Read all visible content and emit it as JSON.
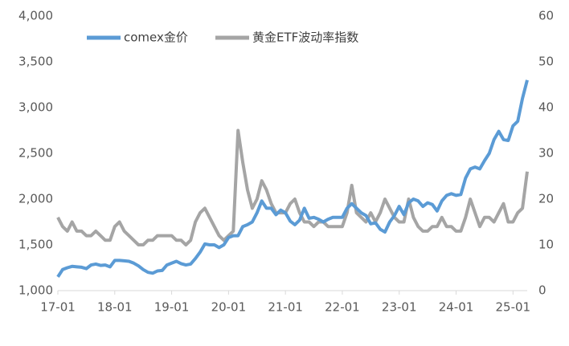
{
  "chart_data": {
    "type": "line",
    "x": [
      "17-01",
      "17-02",
      "17-03",
      "17-04",
      "17-05",
      "17-06",
      "17-07",
      "17-08",
      "17-09",
      "17-10",
      "17-11",
      "17-12",
      "18-01",
      "18-02",
      "18-03",
      "18-04",
      "18-05",
      "18-06",
      "18-07",
      "18-08",
      "18-09",
      "18-10",
      "18-11",
      "18-12",
      "19-01",
      "19-02",
      "19-03",
      "19-04",
      "19-05",
      "19-06",
      "19-07",
      "19-08",
      "19-09",
      "19-10",
      "19-11",
      "19-12",
      "20-01",
      "20-02",
      "20-03",
      "20-04",
      "20-05",
      "20-06",
      "20-07",
      "20-08",
      "20-09",
      "20-10",
      "20-11",
      "20-12",
      "21-01",
      "21-02",
      "21-03",
      "21-04",
      "21-05",
      "21-06",
      "21-07",
      "21-08",
      "21-09",
      "21-10",
      "21-11",
      "21-12",
      "22-01",
      "22-02",
      "22-03",
      "22-04",
      "22-05",
      "22-06",
      "22-07",
      "22-08",
      "22-09",
      "22-10",
      "22-11",
      "22-12",
      "23-01",
      "23-02",
      "23-03",
      "23-04",
      "23-05",
      "23-06",
      "23-07",
      "23-08",
      "23-09",
      "23-10",
      "23-11",
      "23-12",
      "24-01",
      "24-02",
      "24-03",
      "24-04",
      "24-05",
      "24-06",
      "24-07",
      "24-08",
      "24-09",
      "24-10",
      "24-11",
      "24-12",
      "25-01",
      "25-02",
      "25-03",
      "25-04"
    ],
    "xticks": [
      "17-01",
      "18-01",
      "19-01",
      "20-01",
      "21-01",
      "22-01",
      "23-01",
      "24-01",
      "25-01"
    ],
    "series": [
      {
        "name": "comex金价",
        "color": "#5b9bd5",
        "axis": "y",
        "values": [
          1150,
          1230,
          1250,
          1265,
          1260,
          1255,
          1240,
          1280,
          1290,
          1275,
          1280,
          1260,
          1330,
          1330,
          1325,
          1320,
          1300,
          1270,
          1230,
          1200,
          1190,
          1215,
          1220,
          1280,
          1300,
          1320,
          1295,
          1280,
          1290,
          1350,
          1420,
          1510,
          1500,
          1500,
          1470,
          1500,
          1580,
          1600,
          1600,
          1700,
          1720,
          1750,
          1850,
          1980,
          1900,
          1900,
          1830,
          1880,
          1850,
          1760,
          1720,
          1770,
          1900,
          1790,
          1800,
          1780,
          1750,
          1780,
          1800,
          1800,
          1800,
          1900,
          1950,
          1900,
          1850,
          1820,
          1730,
          1740,
          1670,
          1640,
          1750,
          1820,
          1920,
          1830,
          1960,
          2000,
          1980,
          1920,
          1960,
          1940,
          1870,
          1980,
          2040,
          2060,
          2040,
          2050,
          2230,
          2330,
          2350,
          2330,
          2420,
          2500,
          2650,
          2740,
          2650,
          2640,
          2800,
          2850,
          3100,
          3300
        ]
      },
      {
        "name": "黄金ETF波动率指数",
        "color": "#a5a5a5",
        "axis": "y2",
        "values": [
          16,
          14,
          13,
          15,
          13,
          13,
          12,
          12,
          13,
          12,
          11,
          11,
          14,
          15,
          13,
          12,
          11,
          10,
          10,
          11,
          11,
          12,
          12,
          12,
          12,
          11,
          11,
          10,
          11,
          15,
          17,
          18,
          16,
          14,
          12,
          11,
          12,
          13,
          35,
          28,
          22,
          18,
          20,
          24,
          22,
          19,
          17,
          17,
          17,
          19,
          20,
          17,
          15,
          15,
          14,
          15,
          15,
          14,
          14,
          14,
          14,
          17,
          23,
          17,
          16,
          15,
          17,
          15,
          17,
          20,
          18,
          16,
          15,
          15,
          20,
          16,
          14,
          13,
          13,
          14,
          14,
          16,
          14,
          14,
          13,
          13,
          16,
          20,
          17,
          14,
          16,
          16,
          15,
          17,
          19,
          15,
          15,
          17,
          18,
          26
        ]
      }
    ],
    "ylim": [
      1000,
      4000
    ],
    "yticks": [
      {
        "value": 1000,
        "label": "1,000"
      },
      {
        "value": 1500,
        "label": "1,500"
      },
      {
        "value": 2000,
        "label": "2,000"
      },
      {
        "value": 2500,
        "label": "2,500"
      },
      {
        "value": 3000,
        "label": "3,000"
      },
      {
        "value": 3500,
        "label": "3,500"
      },
      {
        "value": 4000,
        "label": "4,000"
      }
    ],
    "y2lim": [
      0,
      60
    ],
    "y2ticks": [
      0,
      10,
      20,
      30,
      40,
      50,
      60
    ],
    "legend": "top"
  }
}
